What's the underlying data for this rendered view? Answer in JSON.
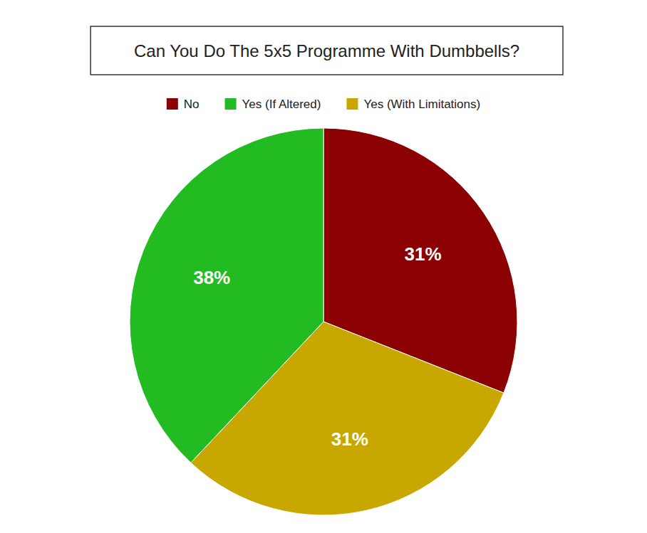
{
  "chart_data": {
    "type": "pie",
    "title": "Can You Do The 5x5 Programme With Dumbbells?",
    "categories": [
      "No",
      "Yes (With Limitations)",
      "Yes (If Altered)"
    ],
    "values": [
      31,
      31,
      38
    ],
    "value_labels": [
      "31%",
      "31%",
      "38%"
    ],
    "colors": [
      "#8B0000",
      "#C8A800",
      "#22BB22"
    ],
    "data_labels": true,
    "legend": "top"
  }
}
